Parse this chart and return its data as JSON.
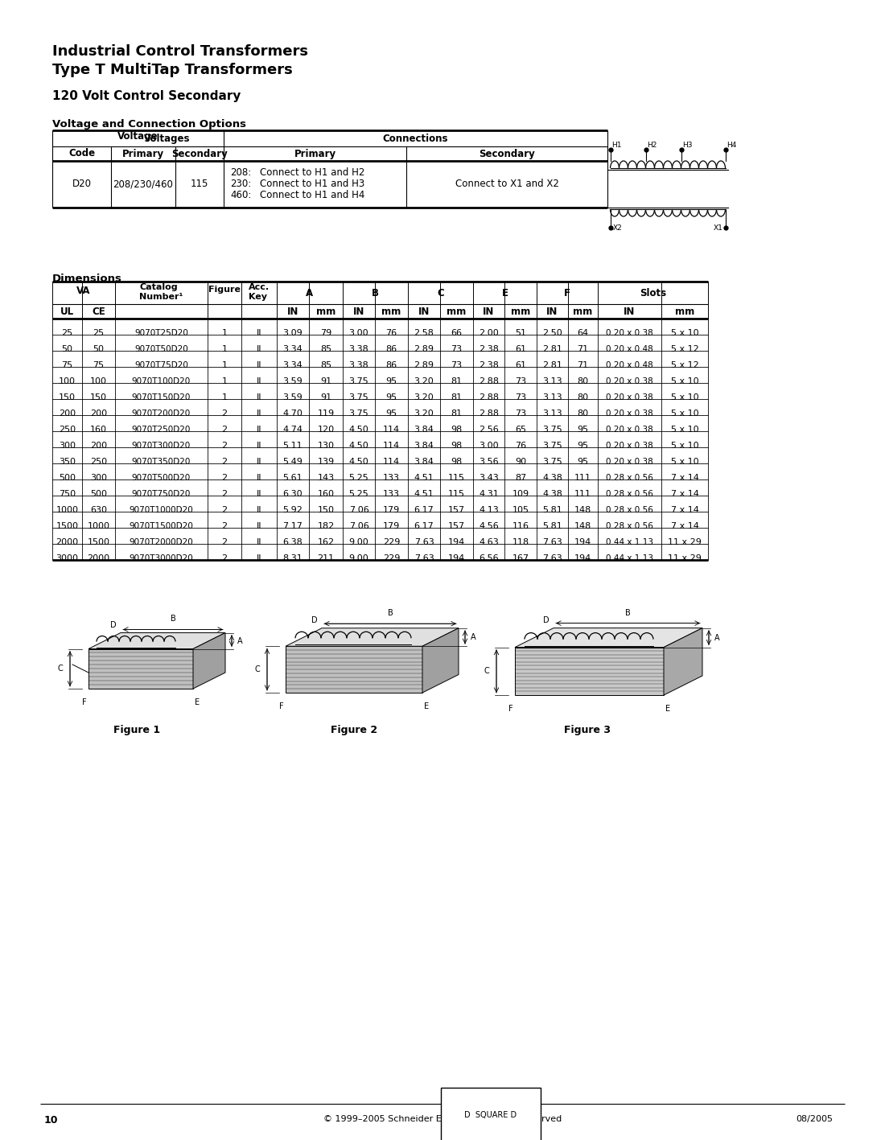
{
  "title_line1": "Industrial Control Transformers",
  "title_line2": "Type T MultiTap Transformers",
  "subtitle": "120 Volt Control Secondary",
  "section1_title": "Voltage and Connection Options",
  "section2_title": "Dimensions",
  "dim_rows": [
    [
      "25",
      "25",
      "9070T25D20",
      "1",
      "II",
      "3.09",
      "79",
      "3.00",
      "76",
      "2.58",
      "66",
      "2.00",
      "51",
      "2.50",
      "64",
      "0.20 x 0.38",
      "5 x 10"
    ],
    [
      "50",
      "50",
      "9070T50D20",
      "1",
      "II",
      "3.34",
      "85",
      "3.38",
      "86",
      "2.89",
      "73",
      "2.38",
      "61",
      "2.81",
      "71",
      "0.20 x 0.48",
      "5 x 12"
    ],
    [
      "75",
      "75",
      "9070T75D20",
      "1",
      "II",
      "3.34",
      "85",
      "3.38",
      "86",
      "2.89",
      "73",
      "2.38",
      "61",
      "2.81",
      "71",
      "0.20 x 0.48",
      "5 x 12"
    ],
    [
      "100",
      "100",
      "9070T100D20",
      "1",
      "II",
      "3.59",
      "91",
      "3.75",
      "95",
      "3.20",
      "81",
      "2.88",
      "73",
      "3.13",
      "80",
      "0.20 x 0.38",
      "5 x 10"
    ],
    [
      "150",
      "150",
      "9070T150D20",
      "1",
      "II",
      "3.59",
      "91",
      "3.75",
      "95",
      "3.20",
      "81",
      "2.88",
      "73",
      "3.13",
      "80",
      "0.20 x 0.38",
      "5 x 10"
    ],
    [
      "200",
      "200",
      "9070T200D20",
      "2",
      "II",
      "4.70",
      "119",
      "3.75",
      "95",
      "3.20",
      "81",
      "2.88",
      "73",
      "3.13",
      "80",
      "0.20 x 0.38",
      "5 x 10"
    ],
    [
      "250",
      "160",
      "9070T250D20",
      "2",
      "II",
      "4.74",
      "120",
      "4.50",
      "114",
      "3.84",
      "98",
      "2.56",
      "65",
      "3.75",
      "95",
      "0.20 x 0.38",
      "5 x 10"
    ],
    [
      "300",
      "200",
      "9070T300D20",
      "2",
      "II",
      "5.11",
      "130",
      "4.50",
      "114",
      "3.84",
      "98",
      "3.00",
      "76",
      "3.75",
      "95",
      "0.20 x 0.38",
      "5 x 10"
    ],
    [
      "350",
      "250",
      "9070T350D20",
      "2",
      "II",
      "5.49",
      "139",
      "4.50",
      "114",
      "3.84",
      "98",
      "3.56",
      "90",
      "3.75",
      "95",
      "0.20 x 0.38",
      "5 x 10"
    ],
    [
      "500",
      "300",
      "9070T500D20",
      "2",
      "II",
      "5.61",
      "143",
      "5.25",
      "133",
      "4.51",
      "115",
      "3.43",
      "87",
      "4.38",
      "111",
      "0.28 x 0.56",
      "7 x 14"
    ],
    [
      "750",
      "500",
      "9070T750D20",
      "2",
      "II",
      "6.30",
      "160",
      "5.25",
      "133",
      "4.51",
      "115",
      "4.31",
      "109",
      "4.38",
      "111",
      "0.28 x 0.56",
      "7 x 14"
    ],
    [
      "1000",
      "630",
      "9070T1000D20",
      "2",
      "II",
      "5.92",
      "150",
      "7.06",
      "179",
      "6.17",
      "157",
      "4.13",
      "105",
      "5.81",
      "148",
      "0.28 x 0.56",
      "7 x 14"
    ],
    [
      "1500",
      "1000",
      "9070T1500D20",
      "2",
      "II",
      "7.17",
      "182",
      "7.06",
      "179",
      "6.17",
      "157",
      "4.56",
      "116",
      "5.81",
      "148",
      "0.28 x 0.56",
      "7 x 14"
    ],
    [
      "2000",
      "1500",
      "9070T2000D20",
      "2",
      "II",
      "6.38",
      "162",
      "9.00",
      "229",
      "7.63",
      "194",
      "4.63",
      "118",
      "7.63",
      "194",
      "0.44 x 1.13",
      "11 x 29"
    ],
    [
      "3000",
      "2000",
      "9070T3000D20",
      "2",
      "II",
      "8.31",
      "211",
      "9.00",
      "229",
      "7.63",
      "194",
      "6.56",
      "167",
      "7.63",
      "194",
      "0.44 x 1.13",
      "11 x 29"
    ]
  ],
  "footer_text": "© 1999–2005 Schneider Electric  All Rights Reserved",
  "page_num": "10",
  "date": "08/2005"
}
